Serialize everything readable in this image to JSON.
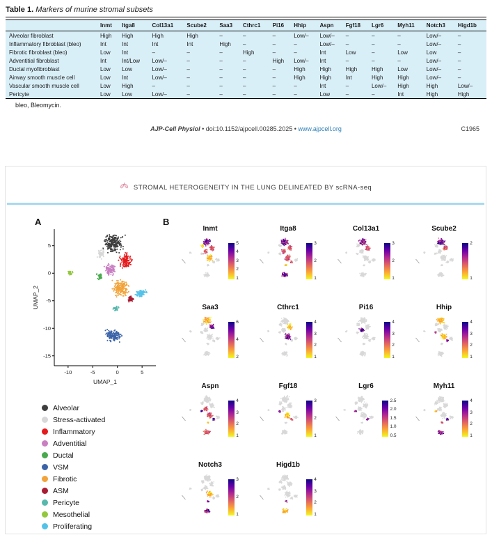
{
  "table": {
    "label": "Table 1.",
    "title": "Markers of murine stromal subsets",
    "columns": [
      "Inmt",
      "Itga8",
      "Col13a1",
      "Scube2",
      "Saa3",
      "Cthrc1",
      "Pi16",
      "Hhip",
      "Aspn",
      "Fgf18",
      "Lgr6",
      "Myh11",
      "Notch3",
      "Higd1b"
    ],
    "rows": [
      {
        "name": "Alveolar fibroblast",
        "values": [
          "High",
          "High",
          "High",
          "High",
          "–",
          "–",
          "–",
          "Low/–",
          "Low/–",
          "–",
          "–",
          "–",
          "Low/–",
          "–"
        ]
      },
      {
        "name": "Inflammatory fibroblast (bleo)",
        "values": [
          "Int",
          "Int",
          "Int",
          "Int",
          "High",
          "–",
          "–",
          "–",
          "Low/–",
          "–",
          "–",
          "–",
          "Low/–",
          "–"
        ]
      },
      {
        "name": "Fibrotic fibroblast (bleo)",
        "values": [
          "Low",
          "Int",
          "–",
          "–",
          "–",
          "High",
          "–",
          "–",
          "Int",
          "Low",
          "–",
          "Low",
          "Low",
          "–"
        ]
      },
      {
        "name": "Adventitial fibroblast",
        "values": [
          "Int",
          "Int/Low",
          "Low/–",
          "–",
          "–",
          "–",
          "High",
          "Low/–",
          "Int",
          "–",
          "–",
          "–",
          "Low/–",
          "–"
        ]
      },
      {
        "name": "Ductal myofibroblast",
        "values": [
          "Low",
          "Low",
          "Low/–",
          "–",
          "–",
          "–",
          "–",
          "High",
          "High",
          "High",
          "High",
          "Low",
          "Low/–",
          "–"
        ]
      },
      {
        "name": "Airway smooth muscle cell",
        "values": [
          "Low",
          "Int",
          "Low/–",
          "–",
          "–",
          "–",
          "–",
          "High",
          "High",
          "Int",
          "High",
          "High",
          "Low/–",
          "–"
        ]
      },
      {
        "name": "Vascular smooth muscle cell",
        "values": [
          "Low",
          "High",
          "–",
          "–",
          "–",
          "–",
          "–",
          "–",
          "Int",
          "–",
          "Low/–",
          "High",
          "High",
          "Low/–"
        ]
      },
      {
        "name": "Pericyte",
        "values": [
          "Low",
          "Low",
          "Low/–",
          "–",
          "–",
          "–",
          "–",
          "–",
          "Low",
          "–",
          "–",
          "Int",
          "High",
          "High"
        ]
      }
    ],
    "footnote": "bleo, Bleomycin."
  },
  "journal_line": {
    "journal": "AJP-Cell Physiol",
    "sep1": " • ",
    "doi": "doi:10.1152/ajpcell.00285.2025",
    "sep2": " • ",
    "url": "www.ajpcell.org",
    "page": "C1965"
  },
  "figure": {
    "title": "STROMAL HETEROGENEITY IN THE LUNG DELINEATED BY scRNA-seq",
    "panel_a_label": "A",
    "panel_b_label": "B",
    "accent_color": "#a9daee"
  },
  "chart_data": [
    {
      "type": "scatter",
      "title": "UMAP clustering of murine lung stromal cells",
      "xlabel": "UMAP_1",
      "ylabel": "UMAP_2",
      "xlim": [
        -12.8,
        7.8
      ],
      "ylim": [
        -16.8,
        8
      ],
      "xticks": [
        -10,
        -5,
        0,
        5
      ],
      "yticks": [
        5,
        0,
        -5,
        -10,
        -15
      ],
      "grid": false,
      "legend_position": "below-left",
      "clusters": [
        {
          "name": "Alveolar",
          "color": "#3f3f3f",
          "cx": -0.8,
          "cy": 5.4,
          "rx": 2.5,
          "ry": 2.1,
          "n": 240
        },
        {
          "name": "Stress-activated",
          "color": "#d8d8d8",
          "cx": -3.3,
          "cy": 3.5,
          "rx": 1.1,
          "ry": 1.1,
          "n": 55
        },
        {
          "name": "Inflammatory",
          "color": "#e41a1c",
          "cx": 1.7,
          "cy": 2.3,
          "rx": 1.6,
          "ry": 1.7,
          "n": 130
        },
        {
          "name": "Adventitial",
          "color": "#c97fc2",
          "cx": -1.5,
          "cy": 0.6,
          "rx": 1.5,
          "ry": 1.4,
          "n": 110
        },
        {
          "name": "Ductal",
          "color": "#49a94d",
          "cx": -3.6,
          "cy": -0.6,
          "rx": 0.8,
          "ry": 0.7,
          "n": 35
        },
        {
          "name": "VSM",
          "color": "#3b63a8",
          "cx": -0.9,
          "cy": -11.3,
          "rx": 2.1,
          "ry": 1.5,
          "n": 140
        },
        {
          "name": "Fibrotic",
          "color": "#f2a33a",
          "cx": 0.6,
          "cy": -2.7,
          "rx": 2.0,
          "ry": 2.0,
          "n": 190
        },
        {
          "name": "ASM",
          "color": "#a81d33",
          "cx": 2.7,
          "cy": -4.7,
          "rx": 0.9,
          "ry": 0.75,
          "n": 50
        },
        {
          "name": "Pericyte",
          "color": "#57b9ac",
          "cx": -0.3,
          "cy": -6.4,
          "rx": 0.75,
          "ry": 0.55,
          "n": 35
        },
        {
          "name": "Mesothelial",
          "color": "#93c83e",
          "cx": -9.6,
          "cy": 0.0,
          "rx": 0.65,
          "ry": 0.5,
          "n": 26
        },
        {
          "name": "Proliferating",
          "color": "#54c2e8",
          "cx": 4.8,
          "cy": -3.7,
          "rx": 1.3,
          "ry": 0.95,
          "n": 75
        }
      ]
    },
    {
      "type": "scatter",
      "title": "Feature plots: marker gene expression on UMAP",
      "colormap_high_to_low": [
        "#0c0786",
        "#6a00a8",
        "#b12a90",
        "#e16462",
        "#fca636",
        "#f0f921"
      ],
      "genes": [
        {
          "name": "Inmt",
          "ticks": [
            "5",
            "4",
            "3",
            "2",
            "1"
          ],
          "highlights": {
            "Alveolar": "high",
            "Inflammatory": "mid",
            "Adventitial": "mid",
            "Fibrotic": "low",
            "Stress-activated": "low"
          }
        },
        {
          "name": "Itga8",
          "ticks": [
            "3",
            "2",
            "1"
          ],
          "highlights": {
            "Alveolar": "high",
            "Inflammatory": "mid",
            "Adventitial": "mid",
            "Fibrotic": "mid",
            "VSM": "high",
            "ASM": "mid",
            "Pericyte": "low"
          }
        },
        {
          "name": "Col13a1",
          "ticks": [
            "3",
            "2",
            "1"
          ],
          "highlights": {
            "Alveolar": "high",
            "Inflammatory": "mid"
          }
        },
        {
          "name": "Scube2",
          "ticks": [
            "2",
            "1"
          ],
          "highlights": {
            "Alveolar": "high",
            "Inflammatory": "mid"
          }
        },
        {
          "name": "Saa3",
          "ticks": [
            "6",
            "4",
            "2"
          ],
          "highlights": {
            "Inflammatory": "high",
            "Alveolar": "low"
          }
        },
        {
          "name": "Cthrc1",
          "ticks": [
            "4",
            "3",
            "2",
            "1"
          ],
          "highlights": {
            "Fibrotic": "high",
            "Inflammatory": "low"
          }
        },
        {
          "name": "Pi16",
          "ticks": [
            "4",
            "3",
            "2",
            "1"
          ],
          "highlights": {
            "Adventitial": "high"
          }
        },
        {
          "name": "Hhip",
          "ticks": [
            "4",
            "3",
            "2",
            "1"
          ],
          "highlights": {
            "Ductal": "high",
            "ASM": "high",
            "Alveolar": "low",
            "Fibrotic": "low"
          }
        },
        {
          "name": "Aspn",
          "ticks": [
            "4",
            "3",
            "2",
            "1"
          ],
          "highlights": {
            "Ductal": "high",
            "ASM": "high",
            "Fibrotic": "mid",
            "Adventitial": "mid",
            "VSM": "mid",
            "Pericyte": "low"
          }
        },
        {
          "name": "Fgf18",
          "ticks": [
            "3",
            "2",
            "1"
          ],
          "highlights": {
            "Ductal": "high",
            "ASM": "mid",
            "Fibrotic": "low"
          }
        },
        {
          "name": "Lgr6",
          "ticks": [
            "2.5",
            "2.0",
            "1.5",
            "1.0",
            "0.5"
          ],
          "highlights": {
            "Ductal": "high",
            "ASM": "high"
          }
        },
        {
          "name": "Myh11",
          "ticks": [
            "4",
            "3",
            "2",
            "1"
          ],
          "highlights": {
            "ASM": "high",
            "VSM": "high",
            "Ductal": "low",
            "Pericyte": "mid"
          }
        },
        {
          "name": "Notch3",
          "ticks": [
            "3",
            "2",
            "1"
          ],
          "highlights": {
            "Pericyte": "high",
            "VSM": "high",
            "Fibrotic": "low"
          }
        },
        {
          "name": "Higd1b",
          "ticks": [
            "4",
            "3",
            "2",
            "1"
          ],
          "highlights": {
            "Pericyte": "high",
            "VSM": "low"
          }
        }
      ]
    }
  ]
}
